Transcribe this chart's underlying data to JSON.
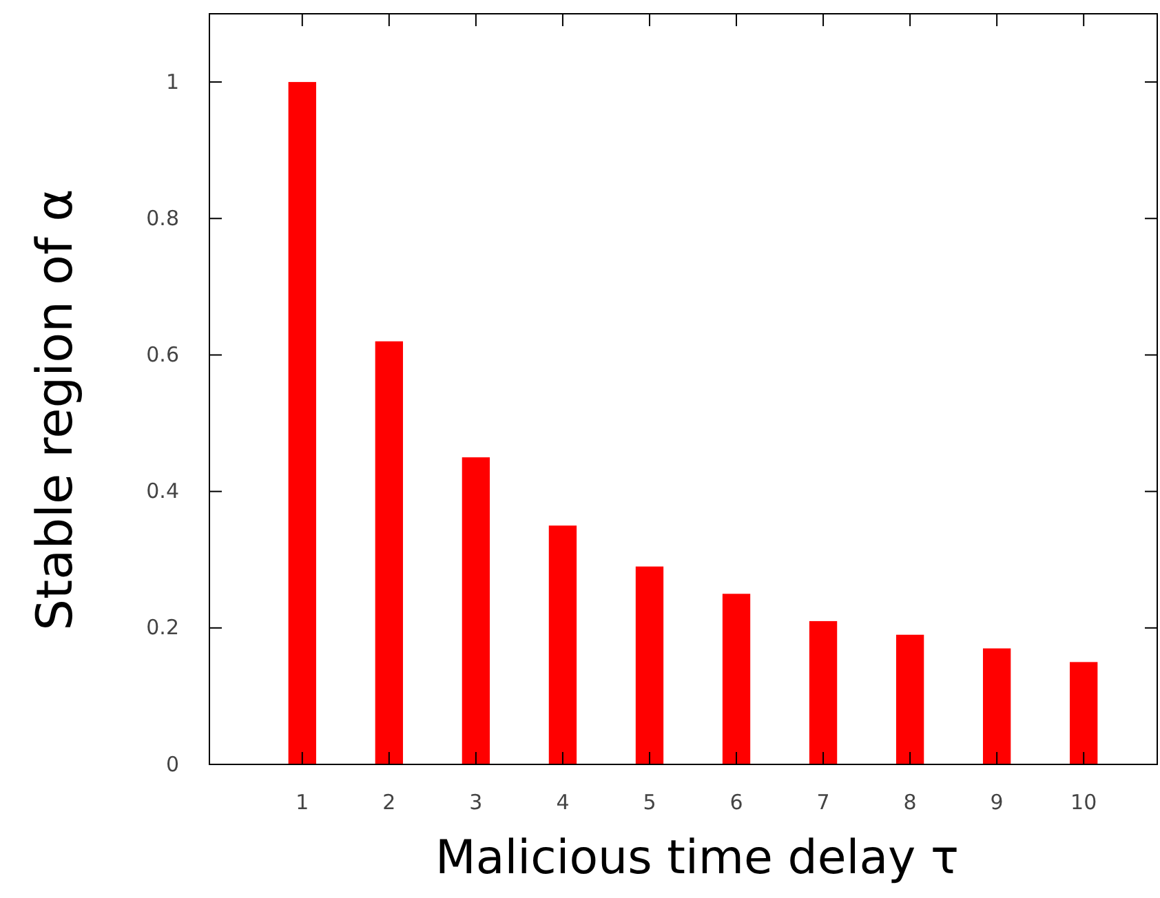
{
  "chart_data": {
    "type": "bar",
    "xlabel": "Malicious time delay τ",
    "ylabel": "Stable region of α",
    "categories": [
      "1",
      "2",
      "3",
      "4",
      "5",
      "6",
      "7",
      "8",
      "9",
      "10"
    ],
    "values": [
      1.0,
      0.62,
      0.45,
      0.35,
      0.29,
      0.25,
      0.21,
      0.19,
      0.17,
      0.15
    ],
    "color": "#ff0000",
    "ylim": [
      0,
      1.1
    ],
    "yticks": [
      0,
      0.2,
      0.4,
      0.6,
      0.8,
      1
    ],
    "grid": false
  }
}
